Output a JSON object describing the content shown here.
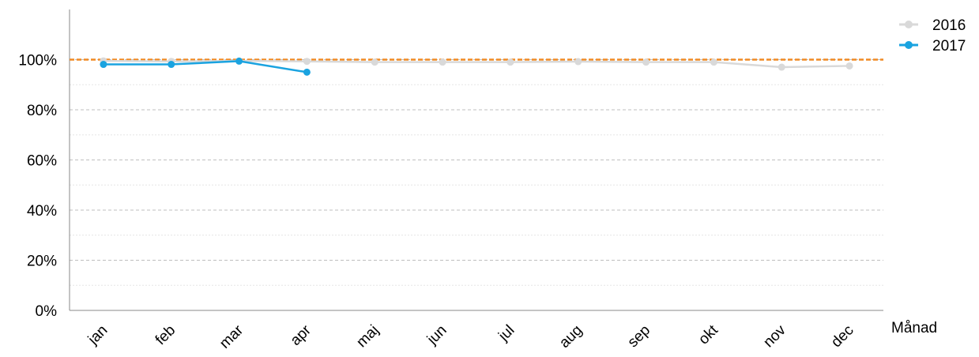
{
  "chart_data": {
    "type": "line",
    "x_label": "Månad",
    "categories": [
      "jan",
      "feb",
      "mar",
      "apr",
      "maj",
      "jun",
      "jul",
      "aug",
      "sep",
      "okt",
      "nov",
      "dec"
    ],
    "series": [
      {
        "name": "2016",
        "color": "#d9d9d9",
        "values": [
          99.5,
          99.3,
          99.5,
          99.3,
          99.0,
          99.0,
          99.0,
          99.2,
          99.0,
          99.0,
          97.0,
          97.5
        ]
      },
      {
        "name": "2017",
        "color": "#1aa3e0",
        "values": [
          98.1,
          98.1,
          99.4,
          95.0,
          null,
          null,
          null,
          null,
          null,
          null,
          null,
          null
        ]
      }
    ],
    "reference_line": {
      "value": 100,
      "color": "#f08a24"
    },
    "ylim": [
      0,
      120
    ],
    "yticks": [
      {
        "value": 0,
        "label": "0%"
      },
      {
        "value": 20,
        "label": "20%"
      },
      {
        "value": 40,
        "label": "40%"
      },
      {
        "value": 60,
        "label": "60%"
      },
      {
        "value": 80,
        "label": "80%"
      },
      {
        "value": 100,
        "label": "100%"
      }
    ],
    "minor_yticks": [
      10,
      30,
      50,
      70,
      90
    ],
    "grid": true,
    "legend": "top-right"
  }
}
